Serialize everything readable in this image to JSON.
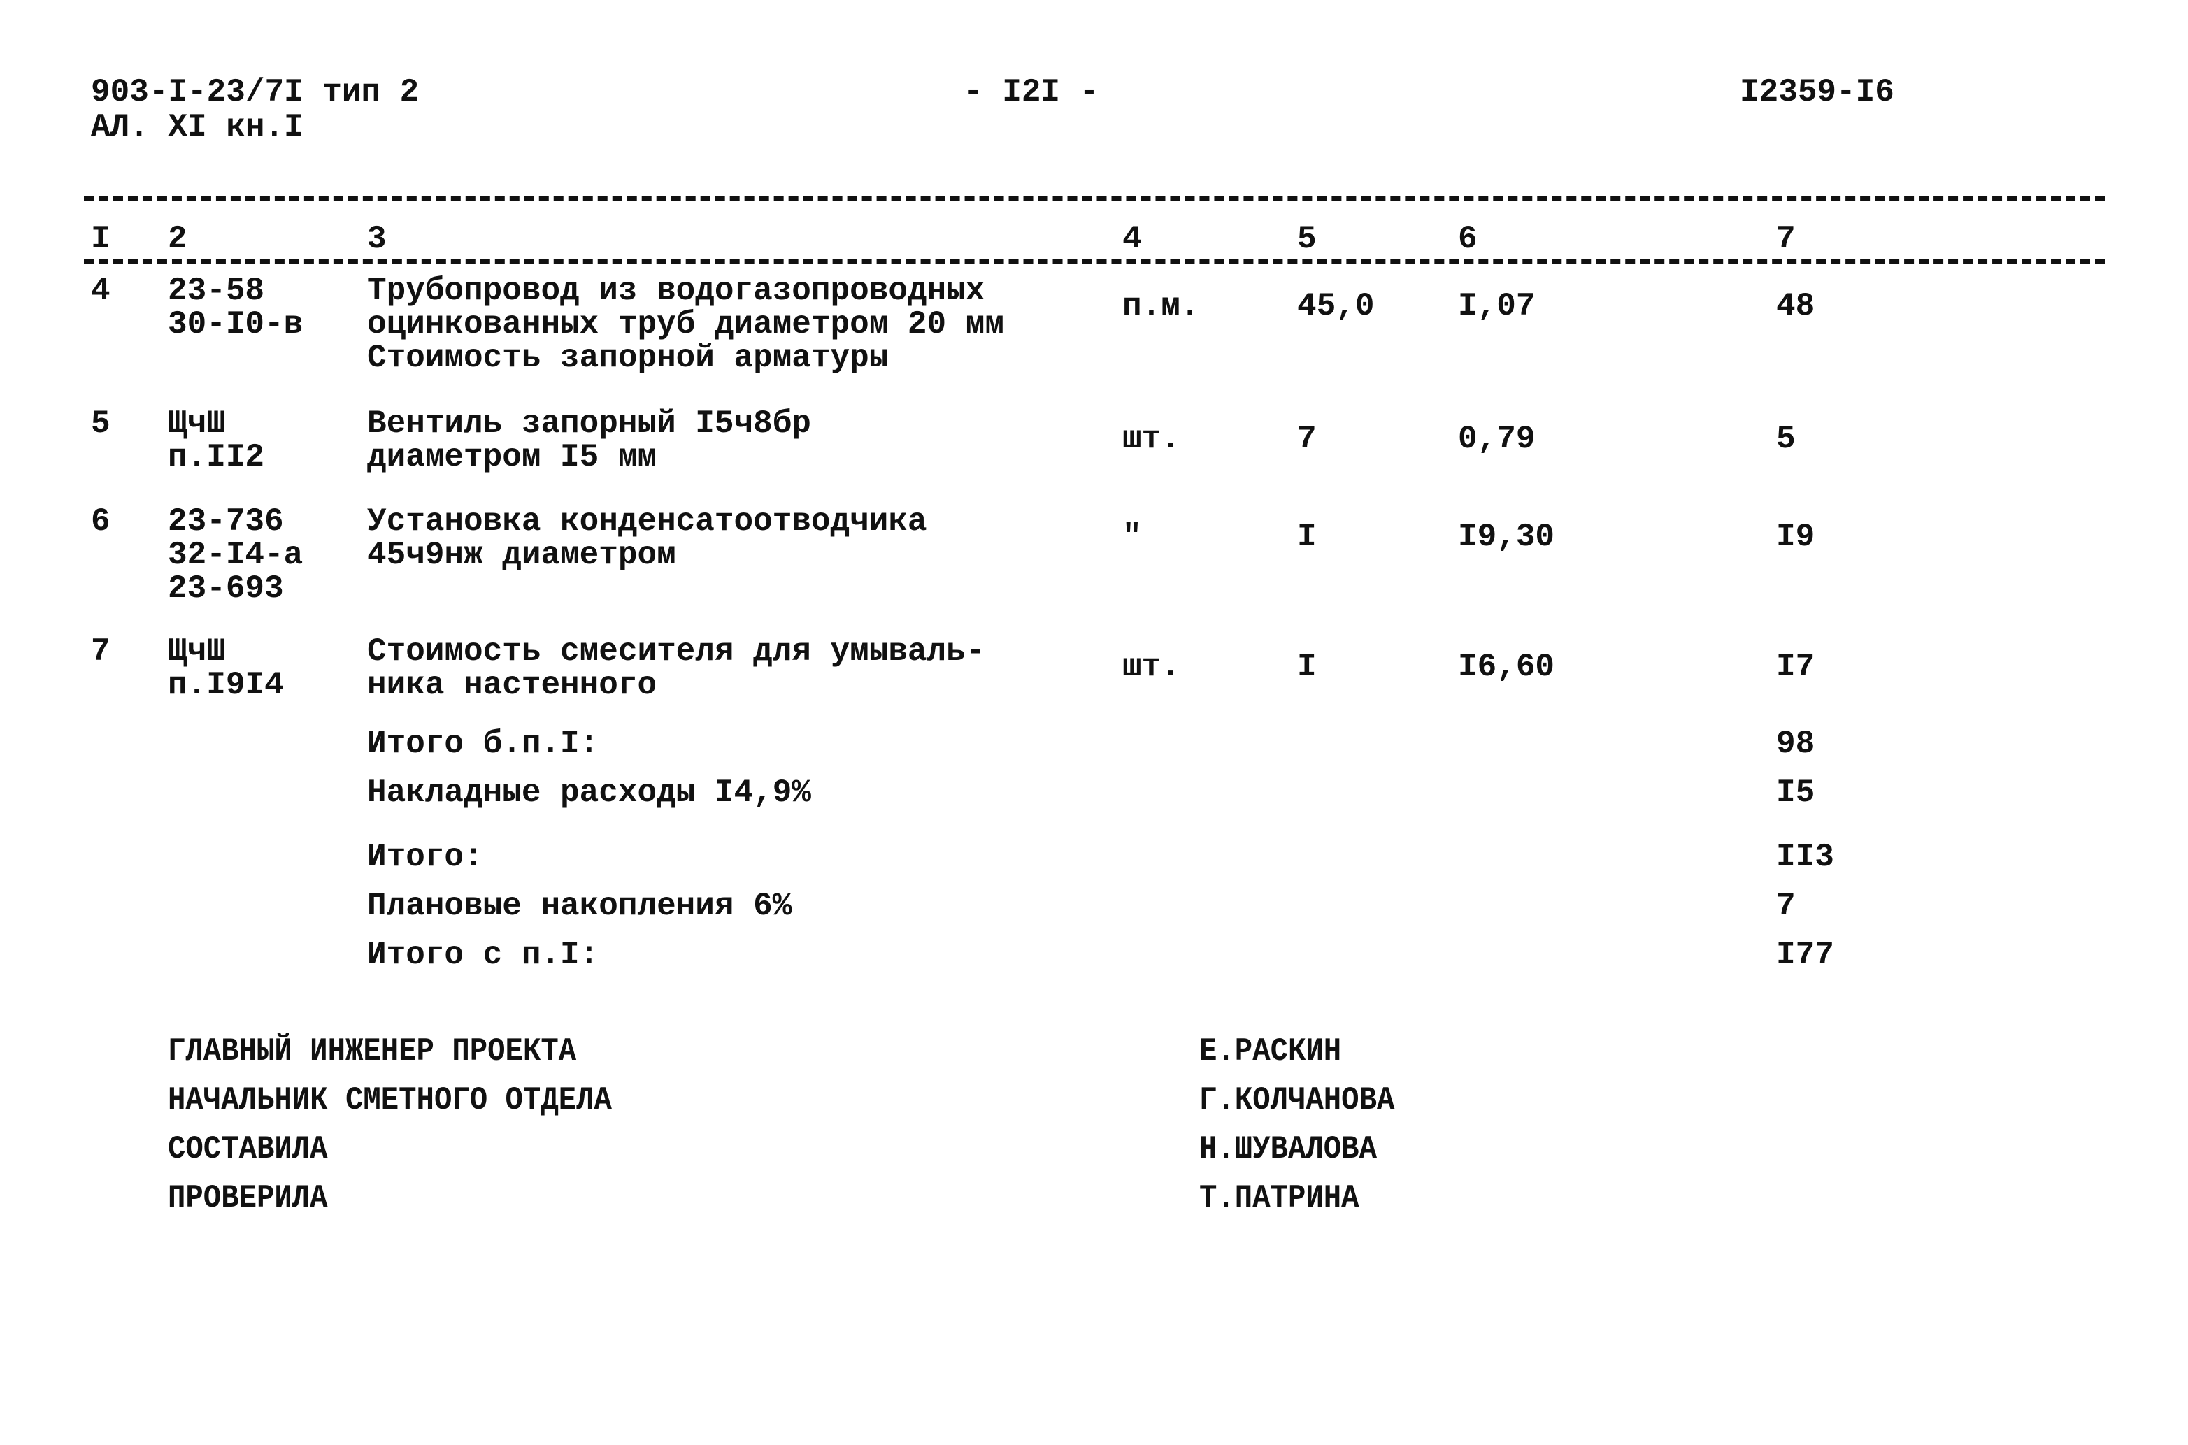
{
  "header": {
    "code_line1": "903-I-23/7I тип 2",
    "code_line2": "АЛ. XI кн.I",
    "page_number": "- I2I -",
    "document_number": "I2359-I6"
  },
  "columns": [
    "I",
    "2",
    "3",
    "4",
    "5",
    "6",
    "7"
  ],
  "rows": [
    {
      "num": "4",
      "code": [
        "23-58",
        "30-I0-в"
      ],
      "description": [
        "Трубопровод из водогазопроводных",
        "оцинкованных труб диаметром 20 мм",
        "Стоимость запорной арматуры"
      ],
      "unit": "п.м.",
      "qty": "45,0",
      "price": "I,07",
      "total": "48"
    },
    {
      "num": "5",
      "code": [
        "ЩчШ",
        "п.II2"
      ],
      "description": [
        "Вентиль запорный I5ч8бр",
        "диаметром I5 мм"
      ],
      "unit": "шт.",
      "qty": "7",
      "price": "0,79",
      "total": "5"
    },
    {
      "num": "6",
      "code": [
        "23-736",
        "32-I4-а",
        "23-693"
      ],
      "description": [
        "Установка конденсатоотводчика",
        "45ч9нж диаметром"
      ],
      "unit": "\"",
      "qty": "I",
      "price": "I9,30",
      "total": "I9"
    },
    {
      "num": "7",
      "code": [
        "ЩчШ",
        "п.I9I4"
      ],
      "description": [
        "Стоимость смесителя для умываль-",
        "ника настенного"
      ],
      "unit": "шт.",
      "qty": "I",
      "price": "I6,60",
      "total": "I7"
    }
  ],
  "totals": [
    {
      "label": "Итого б.п.I:",
      "value": "98"
    },
    {
      "label": "Накладные расходы I4,9%",
      "value": "I5"
    },
    {
      "label": "Итого:",
      "value": "II3"
    },
    {
      "label": "Плановые накопления 6%",
      "value": "7"
    },
    {
      "label": "Итого с п.I:",
      "value": "I77"
    }
  ],
  "signatures": [
    {
      "role": "ГЛАВНЫЙ ИНЖЕНЕР ПРОЕКТА",
      "name": "Е.РАСКИН"
    },
    {
      "role": "НАЧАЛЬНИК СМЕТНОГО ОТДЕЛА",
      "name": "Г.КОЛЧАНОВА"
    },
    {
      "role": "СОСТАВИЛА",
      "name": "Н.ШУВАЛОВА"
    },
    {
      "role": "ПРОВЕРИЛА",
      "name": "Т.ПАТРИНА"
    }
  ]
}
